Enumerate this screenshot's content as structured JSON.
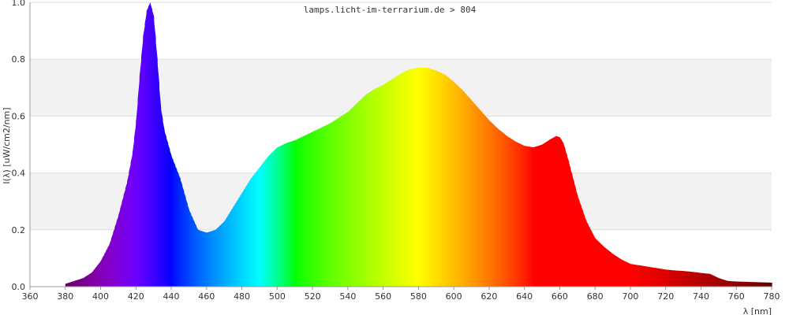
{
  "chart_data": {
    "type": "area",
    "title": "lamps.licht-im-terrarium.de > 804",
    "xlabel": "λ [nm]",
    "ylabel": "I(λ)  [uW/cm2/nm]",
    "xlim": [
      360,
      780
    ],
    "ylim": [
      0,
      1.0
    ],
    "x_ticks": [
      360,
      380,
      400,
      420,
      440,
      460,
      480,
      500,
      520,
      540,
      560,
      580,
      600,
      620,
      640,
      660,
      680,
      700,
      720,
      740,
      760,
      780
    ],
    "y_ticks": [
      0.0,
      0.2,
      0.4,
      0.6,
      0.8,
      1.0
    ],
    "x_tick_labels": [
      "360",
      "380",
      "400",
      "420",
      "440",
      "460",
      "480",
      "500",
      "520",
      "540",
      "560",
      "580",
      "600",
      "620",
      "640",
      "660",
      "680",
      "700",
      "720",
      "740",
      "760",
      "780"
    ],
    "y_tick_labels": [
      "0.0",
      "0.2",
      "0.4",
      "0.6",
      "0.8",
      "1.0"
    ],
    "grid": "horizontal, alternating bands",
    "fill": "spectral wavelength colors",
    "series": [
      {
        "x": [
          380,
          385,
          390,
          395,
          400,
          405,
          410,
          415,
          418,
          420,
          422,
          424,
          426,
          428,
          430,
          432,
          434,
          436,
          440,
          445,
          450,
          455,
          460,
          465,
          470,
          475,
          480,
          485,
          490,
          495,
          500,
          505,
          510,
          515,
          520,
          525,
          530,
          535,
          540,
          545,
          550,
          555,
          560,
          565,
          570,
          575,
          580,
          585,
          590,
          595,
          600,
          605,
          610,
          615,
          620,
          625,
          630,
          635,
          640,
          645,
          650,
          655,
          658,
          660,
          662,
          665,
          670,
          675,
          680,
          685,
          690,
          695,
          700,
          705,
          710,
          715,
          720,
          725,
          730,
          735,
          740,
          745,
          750,
          755,
          760,
          765,
          770,
          775,
          780
        ],
        "y": [
          0.01,
          0.02,
          0.03,
          0.05,
          0.09,
          0.15,
          0.25,
          0.37,
          0.47,
          0.58,
          0.74,
          0.88,
          0.97,
          1.0,
          0.95,
          0.8,
          0.63,
          0.55,
          0.46,
          0.38,
          0.27,
          0.2,
          0.19,
          0.2,
          0.23,
          0.28,
          0.33,
          0.38,
          0.42,
          0.46,
          0.49,
          0.505,
          0.515,
          0.53,
          0.545,
          0.56,
          0.575,
          0.595,
          0.615,
          0.645,
          0.675,
          0.695,
          0.71,
          0.73,
          0.75,
          0.765,
          0.77,
          0.77,
          0.76,
          0.745,
          0.72,
          0.69,
          0.655,
          0.62,
          0.585,
          0.555,
          0.53,
          0.51,
          0.495,
          0.49,
          0.5,
          0.52,
          0.53,
          0.525,
          0.505,
          0.44,
          0.32,
          0.23,
          0.17,
          0.14,
          0.115,
          0.095,
          0.08,
          0.075,
          0.07,
          0.065,
          0.06,
          0.057,
          0.055,
          0.052,
          0.048,
          0.045,
          0.03,
          0.02,
          0.018,
          0.017,
          0.016,
          0.015,
          0.014
        ]
      }
    ]
  }
}
